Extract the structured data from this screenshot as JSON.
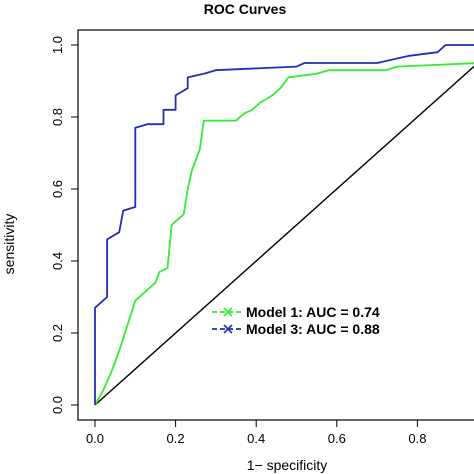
{
  "chart_data": {
    "type": "line",
    "title": "ROC Curves",
    "xlabel": "1− specificity",
    "ylabel": "sensitivity",
    "xlim": [
      0,
      1
    ],
    "ylim": [
      0,
      1
    ],
    "x_ticks": [
      "0.0",
      "0.2",
      "0.4",
      "0.6",
      "0.8"
    ],
    "y_ticks": [
      "0.0",
      "0.2",
      "0.4",
      "0.6",
      "0.8",
      "1.0"
    ],
    "grid": false,
    "legend_position": "right-middle",
    "diagonal_reference": true,
    "series": [
      {
        "name": "Model 1: AUC = 0.74",
        "color": "#33ee33",
        "points": [
          [
            0.0,
            0.0
          ],
          [
            0.02,
            0.04
          ],
          [
            0.04,
            0.09
          ],
          [
            0.06,
            0.15
          ],
          [
            0.08,
            0.22
          ],
          [
            0.1,
            0.29
          ],
          [
            0.12,
            0.31
          ],
          [
            0.15,
            0.34
          ],
          [
            0.16,
            0.37
          ],
          [
            0.18,
            0.38
          ],
          [
            0.19,
            0.5
          ],
          [
            0.2,
            0.51
          ],
          [
            0.22,
            0.53
          ],
          [
            0.23,
            0.6
          ],
          [
            0.24,
            0.65
          ],
          [
            0.26,
            0.71
          ],
          [
            0.27,
            0.79
          ],
          [
            0.35,
            0.79
          ],
          [
            0.37,
            0.81
          ],
          [
            0.39,
            0.82
          ],
          [
            0.41,
            0.84
          ],
          [
            0.44,
            0.86
          ],
          [
            0.46,
            0.88
          ],
          [
            0.48,
            0.91
          ],
          [
            0.55,
            0.92
          ],
          [
            0.58,
            0.93
          ],
          [
            0.72,
            0.93
          ],
          [
            0.75,
            0.94
          ],
          [
            0.95,
            0.95
          ],
          [
            1.0,
            0.95
          ]
        ]
      },
      {
        "name": "Model 3: AUC = 0.88",
        "color": "#1f2fb8",
        "points": [
          [
            0.0,
            0.0
          ],
          [
            0.0,
            0.27
          ],
          [
            0.03,
            0.3
          ],
          [
            0.03,
            0.46
          ],
          [
            0.06,
            0.48
          ],
          [
            0.07,
            0.54
          ],
          [
            0.1,
            0.55
          ],
          [
            0.1,
            0.77
          ],
          [
            0.13,
            0.78
          ],
          [
            0.17,
            0.78
          ],
          [
            0.17,
            0.82
          ],
          [
            0.2,
            0.82
          ],
          [
            0.2,
            0.86
          ],
          [
            0.23,
            0.88
          ],
          [
            0.23,
            0.91
          ],
          [
            0.27,
            0.92
          ],
          [
            0.3,
            0.93
          ],
          [
            0.5,
            0.94
          ],
          [
            0.52,
            0.95
          ],
          [
            0.7,
            0.95
          ],
          [
            0.78,
            0.97
          ],
          [
            0.85,
            0.98
          ],
          [
            0.87,
            1.0
          ],
          [
            1.0,
            1.0
          ]
        ]
      }
    ]
  }
}
